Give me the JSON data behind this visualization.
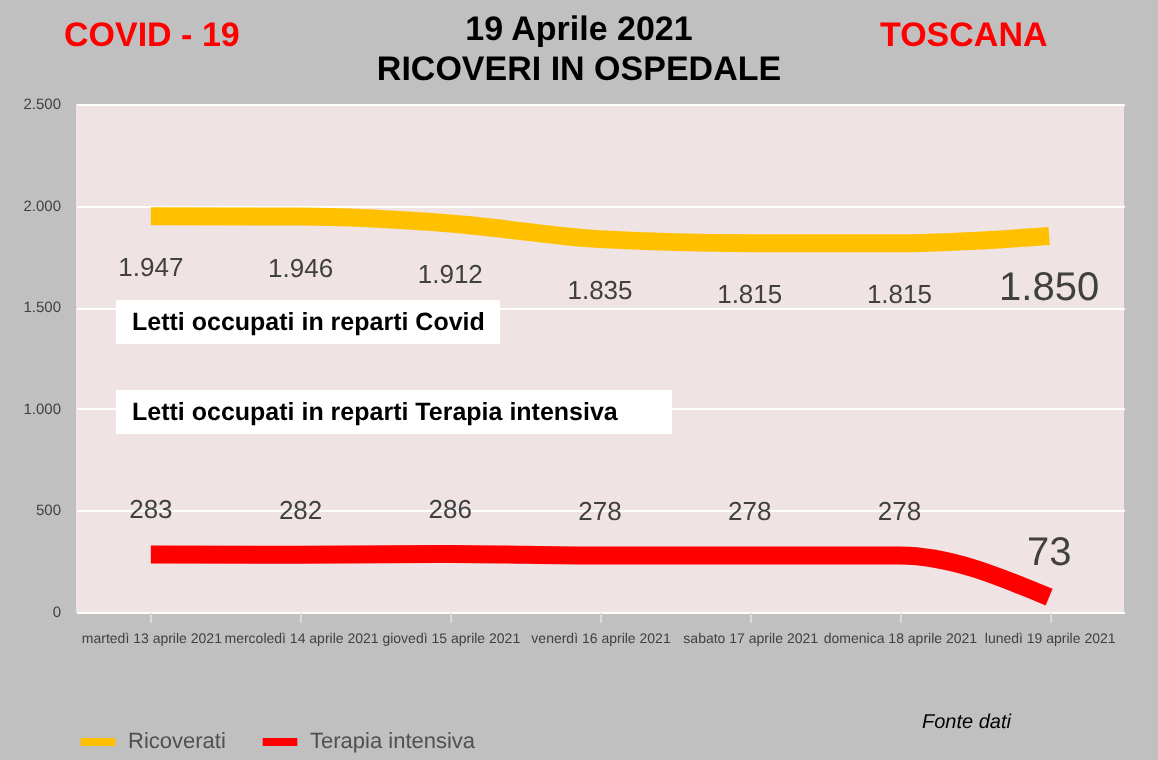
{
  "chart_data": {
    "type": "line",
    "title": "19 Aprile 2021",
    "subtitle": "RICOVERI IN OSPEDALE",
    "categories": [
      "martedì 13 aprile 2021",
      "mercoledì 14 aprile 2021",
      "giovedì 15 aprile 2021",
      "venerdì 16 aprile 2021",
      "sabato 17 aprile 2021",
      "domenica 18 aprile 2021",
      "lunedì 19 aprile 2021"
    ],
    "series": [
      {
        "name": "Ricoverati",
        "color": "#ffc000",
        "values": [
          1947,
          1946,
          1912,
          1835,
          1815,
          1815,
          1850
        ],
        "value_labels": [
          "1.947",
          "1.946",
          "1.912",
          "1.835",
          "1.815",
          "1.815",
          "1.850"
        ]
      },
      {
        "name": "Terapia intensiva",
        "color": "#ff0000",
        "values": [
          283,
          282,
          286,
          278,
          278,
          278,
          73
        ],
        "value_labels": [
          "283",
          "282",
          "286",
          "278",
          "278",
          "278",
          "73"
        ]
      }
    ],
    "ylim": [
      0,
      2500
    ],
    "yticks": [
      {
        "value": 0,
        "label": "0"
      },
      {
        "value": 500,
        "label": "500"
      },
      {
        "value": 1000,
        "label": "1.000"
      },
      {
        "value": 1500,
        "label": "1.500"
      },
      {
        "value": 2000,
        "label": "2.000"
      },
      {
        "value": 2500,
        "label": "2.500"
      }
    ],
    "grid": "y",
    "legend": "bottom",
    "annotations": [
      "COVID - 19",
      "TOSCANA",
      "Letti occupati in reparti Covid",
      "Letti occupati in reparti Terapia intensiva",
      "Fonte dati"
    ]
  }
}
